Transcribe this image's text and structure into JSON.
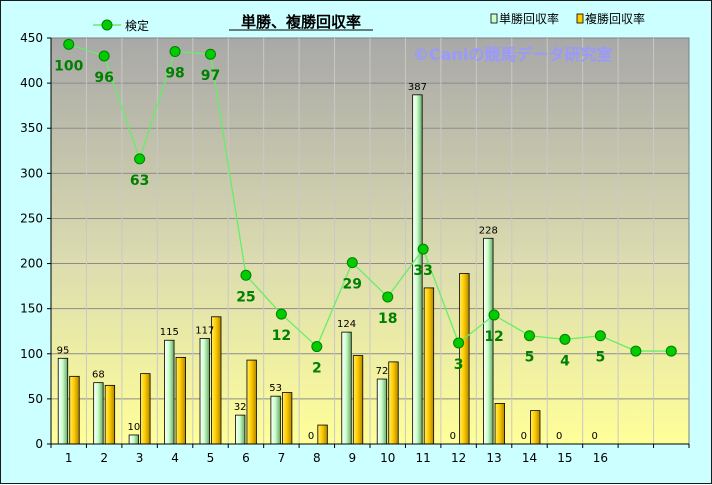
{
  "chart_data": {
    "type": "bar",
    "title": "単勝、複勝回収率",
    "watermark": "©Caniの競馬データ研究室",
    "categories": [
      "1",
      "2",
      "3",
      "4",
      "5",
      "6",
      "7",
      "8",
      "9",
      "10",
      "11",
      "12",
      "13",
      "14",
      "15",
      "16",
      "",
      ""
    ],
    "ylim": [
      0,
      450
    ],
    "yticks": [
      0,
      50,
      100,
      150,
      200,
      250,
      300,
      350,
      400,
      450
    ],
    "series": [
      {
        "name": "単勝回収率",
        "color": "#ccffcc",
        "values": [
          95,
          68,
          10,
          115,
          117,
          32,
          53,
          0,
          124,
          72,
          387,
          0,
          228,
          0,
          0,
          0,
          null,
          null
        ],
        "labels": [
          "95",
          "68",
          "10",
          "115",
          "117",
          "32",
          "53",
          "0",
          "124",
          "72",
          "387",
          "0",
          "228",
          "0",
          "0",
          "0",
          "",
          ""
        ]
      },
      {
        "name": "複勝回収率",
        "color": "#ffcc00",
        "values": [
          75,
          65,
          78,
          96,
          141,
          93,
          57,
          21,
          98,
          91,
          173,
          189,
          45,
          37,
          null,
          null,
          null,
          null
        ]
      },
      {
        "name": "検定",
        "color": "#00cc00",
        "values": [
          443,
          430,
          316,
          435,
          432,
          187,
          144,
          108,
          201,
          163,
          216,
          112,
          143,
          120,
          116,
          120,
          103,
          103
        ],
        "labels": [
          "100",
          "96",
          "63",
          "98",
          "97",
          "25",
          "12",
          "2",
          "29",
          "18",
          "33",
          "3",
          "12",
          "5",
          "4",
          "5",
          "",
          ""
        ]
      }
    ],
    "legend": [
      {
        "name": "検定",
        "placement": "top-left"
      },
      {
        "name": "単勝回収率",
        "placement": "top-right"
      },
      {
        "name": "複勝回収率",
        "placement": "top-right"
      }
    ]
  }
}
